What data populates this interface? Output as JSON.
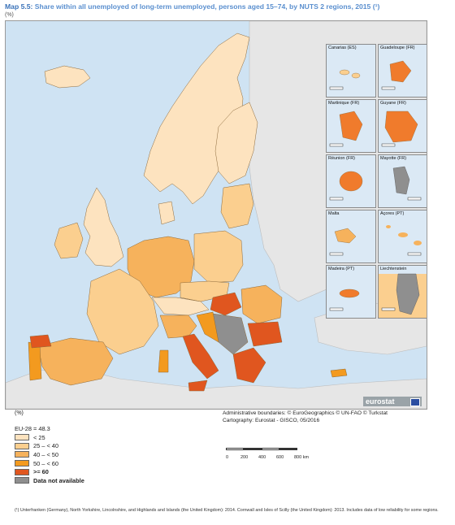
{
  "title": {
    "label": "Map 5.5:",
    "text": "Share within all unemployed of long-term unemployed, persons aged 15–74, by NUTS 2 regions, 2015 (¹)",
    "unit": "(%)"
  },
  "insets": [
    {
      "name": "Canarias (ES)",
      "scale_max": "100",
      "fill": "#fbcf8f"
    },
    {
      "name": "Guadeloupe (FR)",
      "scale_max": "25",
      "fill": "#f07b2c"
    },
    {
      "name": "Martinique (FR)",
      "scale_max": "20",
      "fill": "#f07b2c"
    },
    {
      "name": "Guyane (FR)",
      "scale_max": "100",
      "fill": "#f07b2c"
    },
    {
      "name": "Réunion (FR)",
      "scale_max": "20",
      "fill": "#f07b2c"
    },
    {
      "name": "Mayotte (FR)",
      "scale_max": "15",
      "fill": "#8f8f8f"
    },
    {
      "name": "Malta",
      "scale_max": "10",
      "fill": "#f6b25c"
    },
    {
      "name": "Açores (PT)",
      "scale_max": "50",
      "fill": "#f6b25c"
    },
    {
      "name": "Madeira (PT)",
      "scale_max": "20",
      "fill": "#f07b2c"
    },
    {
      "name": "Liechtenstein",
      "scale_max": "5",
      "fill": "#8f8f8f"
    }
  ],
  "brand": "eurostat",
  "admin_lines": [
    "Administrative boundaries: © EuroGeographics © UN-FAO © Turkstat",
    "Cartography: Eurostat - GISCO, 05/2016"
  ],
  "legend": {
    "unit": "(%)",
    "eu_value": "EU-28 = 48.3",
    "classes": [
      {
        "label": "< 25",
        "color": "#fde3bf",
        "bold": false
      },
      {
        "label": "25 – < 40",
        "color": "#fbcf8f",
        "bold": false
      },
      {
        "label": "40 – < 50",
        "color": "#f6b25c",
        "bold": false
      },
      {
        "label": "50 – < 60",
        "color": "#f39a1f",
        "bold": false
      },
      {
        "label": ">= 60",
        "color": "#e0561f",
        "bold": true
      },
      {
        "label": "Data not available",
        "color": "#8f8f8f",
        "bold": true
      }
    ]
  },
  "scale_bar": {
    "ticks": [
      "0",
      "200",
      "400",
      "600",
      "800 km"
    ]
  },
  "footnote": "(¹) Unterfranken (Germany), North Yorkshire, Lincolnshire, and Highlands and Islands (the United Kingdom): 2014. Cornwall and Isles of Scilly (the United Kingdom): 2013. Includes data of low reliability for some regions.",
  "colors": {
    "sea": "#cfe3f3",
    "non_eu_land": "#e6e6e6",
    "title_blue": "#3b73b9"
  }
}
